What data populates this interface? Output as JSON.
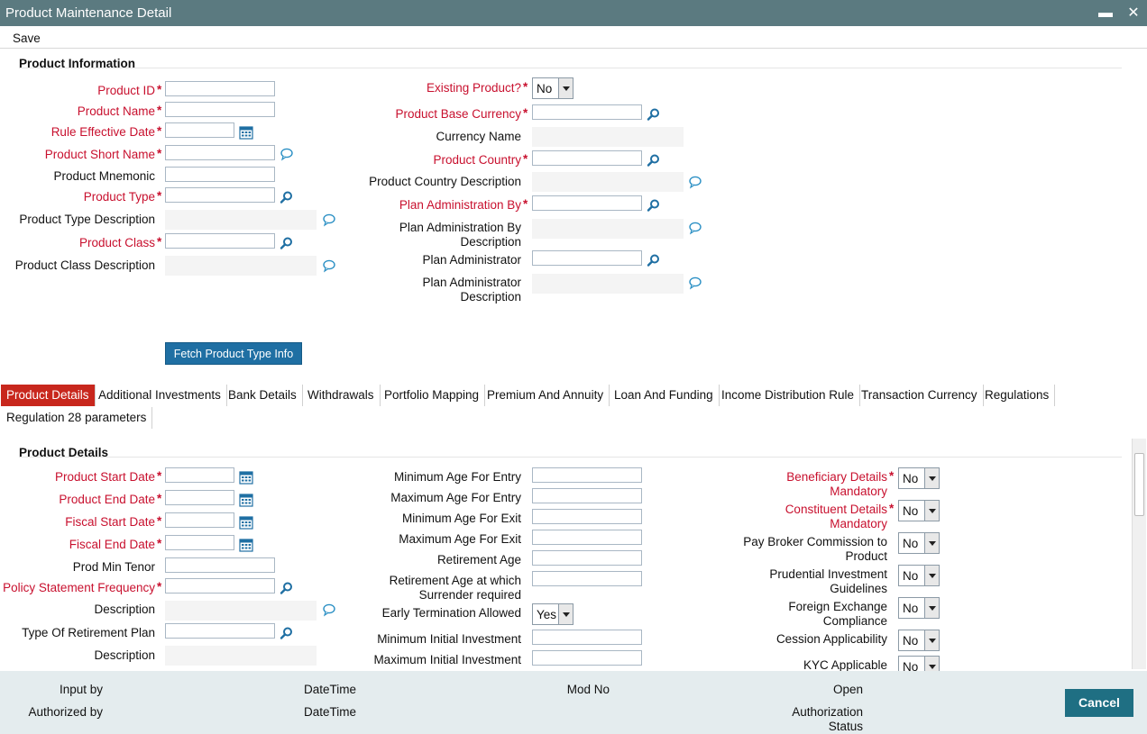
{
  "window": {
    "title": "Product Maintenance Detail",
    "minimize_glyph": "▬",
    "close_glyph": "✕"
  },
  "toolbar": {
    "save_label": "Save"
  },
  "product_information": {
    "title": "Product Information",
    "left": {
      "product_id": "Product ID",
      "product_name": "Product Name",
      "rule_effective_date": "Rule Effective Date",
      "product_short_name": "Product Short Name",
      "product_mnemonic": "Product Mnemonic",
      "product_type": "Product Type",
      "product_type_description": "Product Type Description",
      "product_class": "Product Class",
      "product_class_description": "Product Class Description"
    },
    "right": {
      "existing_product": "Existing Product?",
      "existing_product_value": "No",
      "product_base_currency": "Product Base Currency",
      "currency_name": "Currency Name",
      "product_country": "Product Country",
      "product_country_description": "Product Country Description",
      "plan_administration_by": "Plan Administration By",
      "plan_administration_by_description_1": "Plan Administration By",
      "plan_administration_by_description_2": "Description",
      "plan_administrator": "Plan Administrator",
      "plan_administrator_description_1": "Plan Administrator",
      "plan_administrator_description_2": "Description"
    },
    "fetch_button": "Fetch Product Type Info"
  },
  "tabs": [
    "Product Details",
    "Additional Investments",
    "Bank Details",
    "Withdrawals",
    "Portfolio Mapping",
    "Premium And Annuity",
    "Loan And Funding",
    "Income Distribution Rule",
    "Transaction Currency",
    "Regulations",
    "Regulation 28 parameters"
  ],
  "product_details": {
    "title": "Product Details",
    "col1": {
      "product_start_date": "Product Start Date",
      "product_end_date": "Product End Date",
      "fiscal_start_date": "Fiscal Start Date",
      "fiscal_end_date": "Fiscal End Date",
      "prod_min_tenor": "Prod Min Tenor",
      "policy_statement_frequency": "Policy Statement Frequency",
      "description_1": "Description",
      "type_of_retirement_plan": "Type Of Retirement Plan",
      "description_2": "Description"
    },
    "col2": {
      "min_age_entry": "Minimum Age For Entry",
      "max_age_entry": "Maximum Age For Entry",
      "min_age_exit": "Minimum Age For Exit",
      "max_age_exit": "Maximum Age For Exit",
      "retirement_age": "Retirement Age",
      "retirement_age_surrender_1": "Retirement Age at which",
      "retirement_age_surrender_2": "Surrender required",
      "early_termination": "Early Termination Allowed",
      "early_termination_value": "Yes",
      "min_initial_investment": "Minimum Initial Investment",
      "max_initial_investment": "Maximum Initial Investment"
    },
    "col3": {
      "beneficiary_1": "Beneficiary Details",
      "beneficiary_2": "Mandatory",
      "beneficiary_value": "No",
      "constituent_1": "Constituent Details",
      "constituent_2": "Mandatory",
      "constituent_value": "No",
      "broker_1": "Pay Broker Commission to",
      "broker_2": "Product",
      "broker_value": "No",
      "prudential_1": "Prudential Investment",
      "prudential_2": "Guidelines",
      "prudential_value": "No",
      "forex_1": "Foreign Exchange",
      "forex_2": "Compliance",
      "forex_value": "No",
      "cession": "Cession Applicability",
      "cession_value": "No",
      "kyc": "KYC Applicable",
      "kyc_value": "No"
    }
  },
  "footer": {
    "input_by": "Input by",
    "authorized_by": "Authorized by",
    "datetime_1": "DateTime",
    "datetime_2": "DateTime",
    "mod_no": "Mod No",
    "open": "Open",
    "auth_status_1": "Authorization",
    "auth_status_2": "Status",
    "cancel": "Cancel"
  },
  "colors": {
    "title_bar": "#5b7a80",
    "required": "#c8102e",
    "active_tab": "#c8271d",
    "button": "#1f6fa3",
    "footer": "#e4ecee"
  }
}
